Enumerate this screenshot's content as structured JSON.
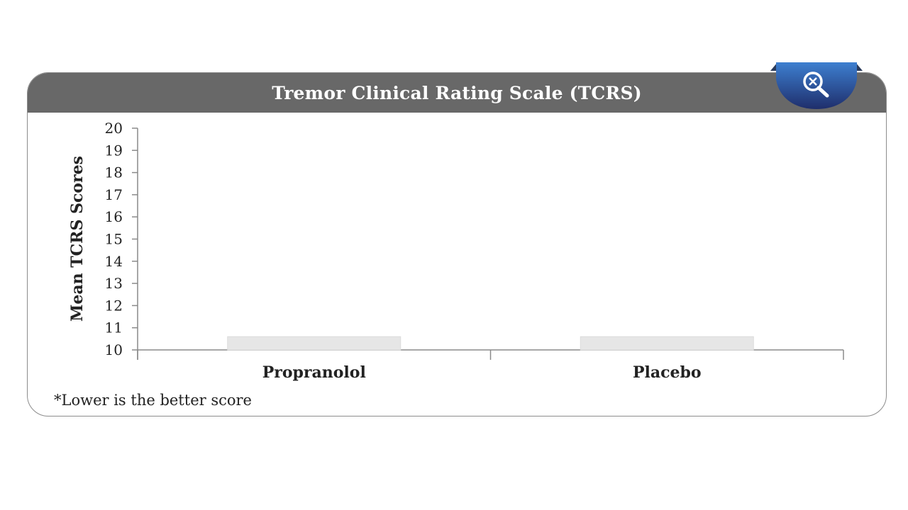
{
  "panel": {
    "title": "Tremor Clinical Rating Scale (TCRS)",
    "zoom_icon": "zoom-out-magnifier-icon"
  },
  "footnote": "*Lower is the better score",
  "colors": {
    "header": "#686868",
    "zoom_tab_top": "#3a78c8",
    "zoom_tab_bottom": "#20306e",
    "bar_fill": "#e6e6e6",
    "axis": "#8a8a8a"
  },
  "chart_data": {
    "type": "bar",
    "categories": [
      "Propranolol",
      "Placebo"
    ],
    "values": [
      10.6,
      10.6
    ],
    "ylabel": "Mean TCRS Scores",
    "ylim": [
      10,
      20
    ],
    "yticks": [
      "10",
      "11",
      "12",
      "13",
      "14",
      "15",
      "16",
      "17",
      "18",
      "19",
      "20"
    ],
    "grid": false,
    "legend": "none"
  }
}
